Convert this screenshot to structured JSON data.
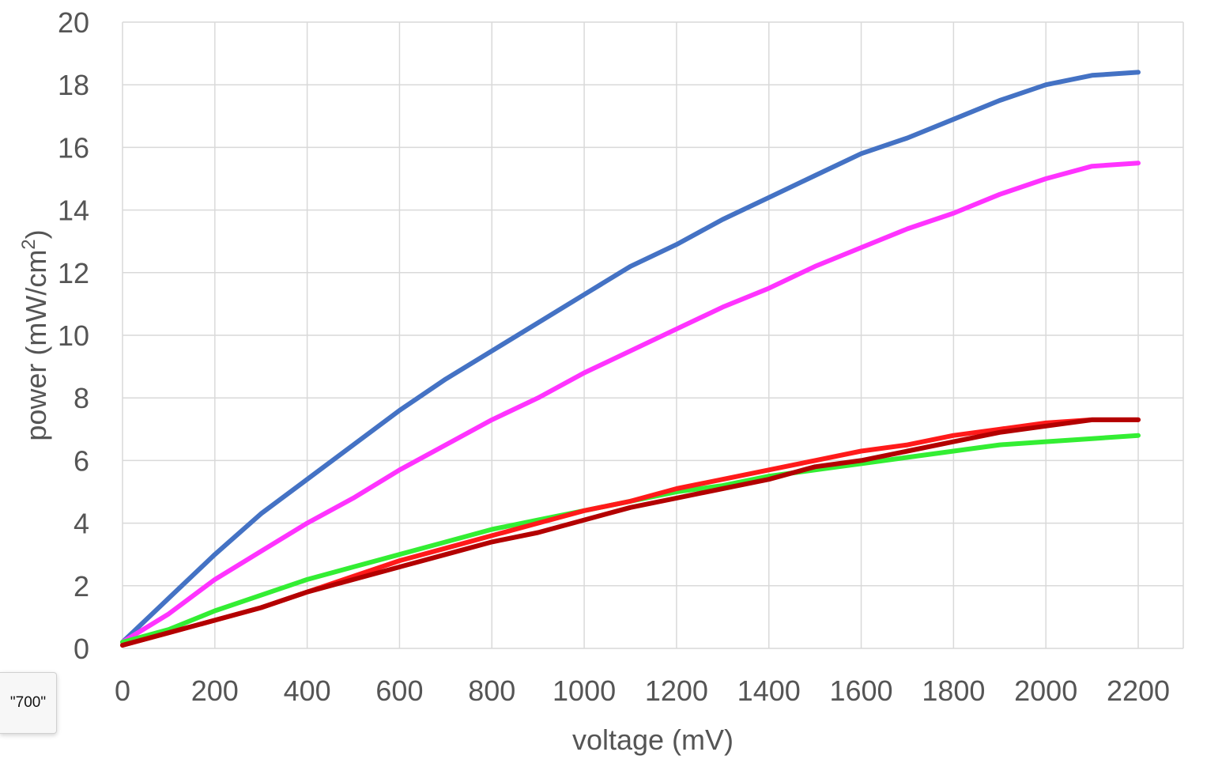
{
  "chart_data": {
    "type": "line",
    "title": "",
    "xlabel": "voltage (mV)",
    "ylabel_main": "power (mW/cm",
    "ylabel_sup": "2",
    "ylabel_end": ")",
    "xlim": [
      0,
      2200
    ],
    "ylim": [
      0,
      20
    ],
    "xticks": [
      0,
      200,
      400,
      600,
      800,
      1000,
      1200,
      1400,
      1600,
      1800,
      2000,
      2200
    ],
    "yticks": [
      0,
      2,
      4,
      6,
      8,
      10,
      12,
      14,
      16,
      18,
      20
    ],
    "grid": true,
    "legend": "none",
    "x": [
      0,
      100,
      200,
      300,
      400,
      500,
      600,
      700,
      800,
      900,
      1000,
      1100,
      1200,
      1300,
      1400,
      1500,
      1600,
      1700,
      1800,
      1900,
      2000,
      2100,
      2200
    ],
    "series": [
      {
        "color": "#4472C4",
        "values": [
          0.2,
          1.6,
          3.0,
          4.3,
          5.4,
          6.5,
          7.6,
          8.6,
          9.5,
          10.4,
          11.3,
          12.2,
          12.9,
          13.7,
          14.4,
          15.1,
          15.8,
          16.3,
          16.9,
          17.5,
          18.0,
          18.3,
          18.4
        ]
      },
      {
        "color": "#FF33FF",
        "values": [
          0.2,
          1.1,
          2.2,
          3.1,
          4.0,
          4.8,
          5.7,
          6.5,
          7.3,
          8.0,
          8.8,
          9.5,
          10.2,
          10.9,
          11.5,
          12.2,
          12.8,
          13.4,
          13.9,
          14.5,
          15.0,
          15.4,
          15.5
        ]
      },
      {
        "color": "#33EE33",
        "values": [
          0.2,
          0.6,
          1.2,
          1.7,
          2.2,
          2.6,
          3.0,
          3.4,
          3.8,
          4.1,
          4.4,
          4.7,
          5.0,
          5.2,
          5.5,
          5.7,
          5.9,
          6.1,
          6.3,
          6.5,
          6.6,
          6.7,
          6.8
        ]
      },
      {
        "color": "#FF1A1A",
        "values": [
          0.1,
          0.5,
          0.9,
          1.3,
          1.8,
          2.3,
          2.8,
          3.2,
          3.6,
          4.0,
          4.4,
          4.7,
          5.1,
          5.4,
          5.7,
          6.0,
          6.3,
          6.5,
          6.8,
          7.0,
          7.2,
          7.3,
          7.3
        ]
      },
      {
        "color": "#B30000",
        "values": [
          0.1,
          0.5,
          0.9,
          1.3,
          1.8,
          2.2,
          2.6,
          3.0,
          3.4,
          3.7,
          4.1,
          4.5,
          4.8,
          5.1,
          5.4,
          5.8,
          6.0,
          6.3,
          6.6,
          6.9,
          7.1,
          7.3,
          7.3
        ]
      }
    ],
    "colors": {
      "grid": "#D9D9D9",
      "text": "#555555"
    }
  },
  "tooltip": {
    "text": "\"700\""
  }
}
